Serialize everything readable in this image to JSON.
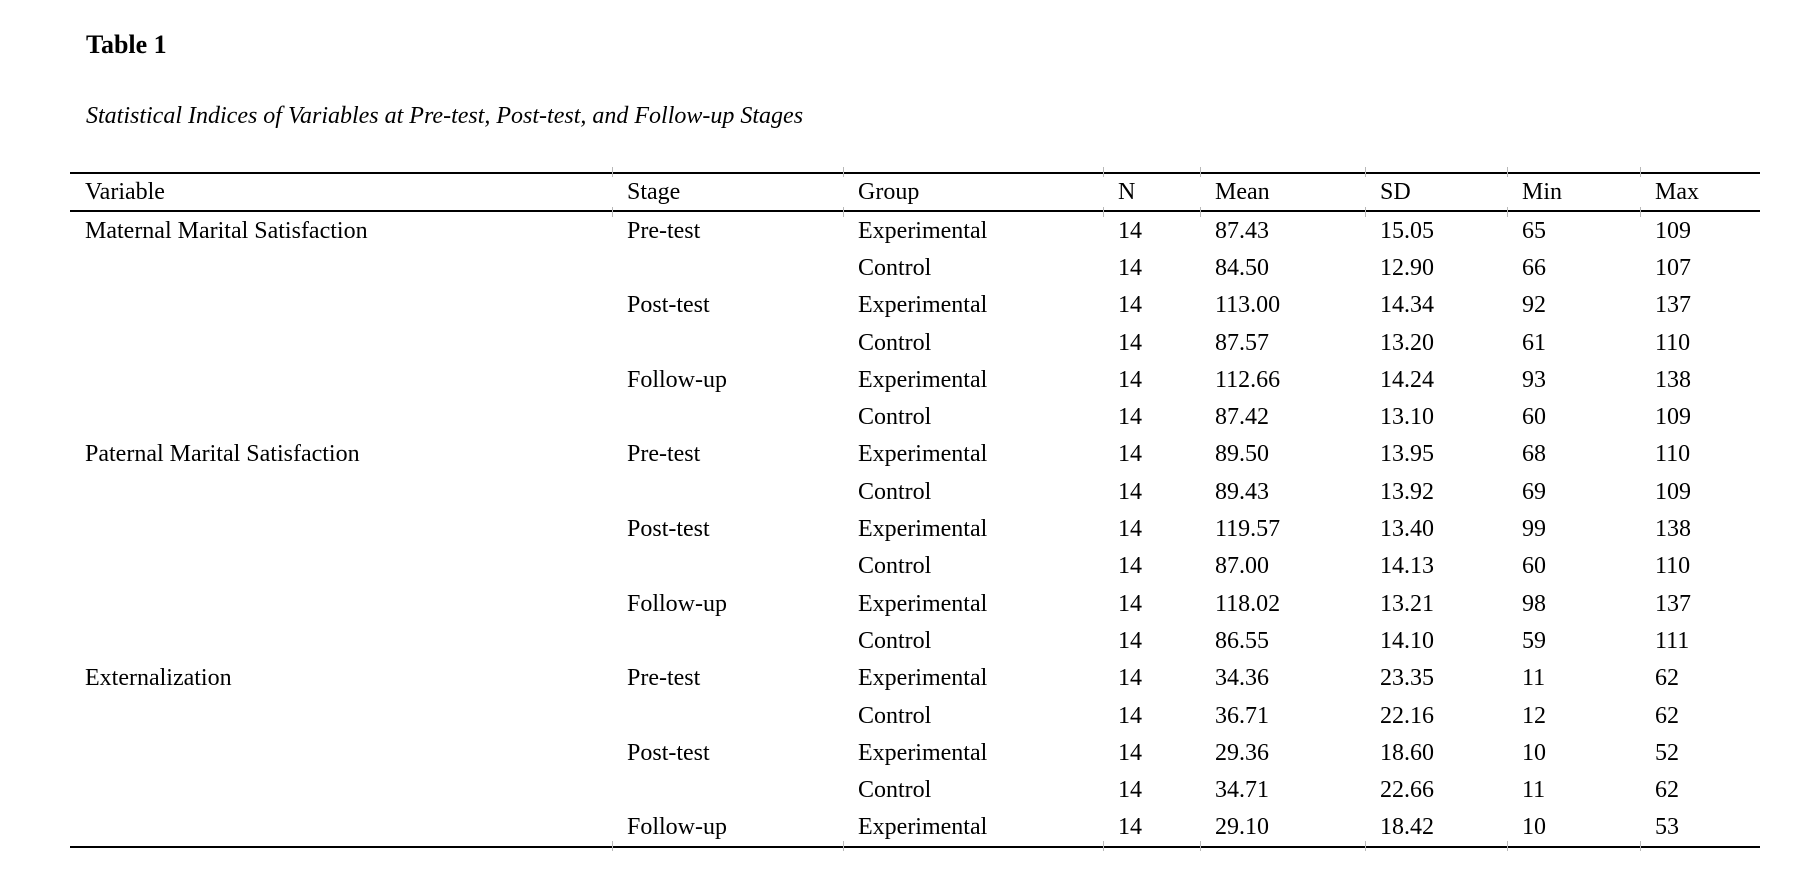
{
  "page": {
    "title": "Table 1",
    "subtitle": "Statistical Indices of Variables at Pre-test, Post-test, and Follow-up Stages"
  },
  "table": {
    "headers": [
      "Variable",
      "Stage",
      "Group",
      "N",
      "Mean",
      "SD",
      "Min",
      "Max"
    ],
    "rows": [
      [
        "Maternal Marital Satisfaction",
        "Pre-test",
        "Experimental",
        "14",
        "87.43",
        "15.05",
        "65",
        "109"
      ],
      [
        "",
        "",
        "Control",
        "14",
        "84.50",
        "12.90",
        "66",
        "107"
      ],
      [
        "",
        "Post-test",
        "Experimental",
        "14",
        "113.00",
        "14.34",
        "92",
        "137"
      ],
      [
        "",
        "",
        "Control",
        "14",
        "87.57",
        "13.20",
        "61",
        "110"
      ],
      [
        "",
        "Follow-up",
        "Experimental",
        "14",
        "112.66",
        "14.24",
        "93",
        "138"
      ],
      [
        "",
        "",
        "Control",
        "14",
        "87.42",
        "13.10",
        "60",
        "109"
      ],
      [
        "Paternal Marital Satisfaction",
        "Pre-test",
        "Experimental",
        "14",
        "89.50",
        "13.95",
        "68",
        "110"
      ],
      [
        "",
        "",
        "Control",
        "14",
        "89.43",
        "13.92",
        "69",
        "109"
      ],
      [
        "",
        "Post-test",
        "Experimental",
        "14",
        "119.57",
        "13.40",
        "99",
        "138"
      ],
      [
        "",
        "",
        "Control",
        "14",
        "87.00",
        "14.13",
        "60",
        "110"
      ],
      [
        "",
        "Follow-up",
        "Experimental",
        "14",
        "118.02",
        "13.21",
        "98",
        "137"
      ],
      [
        "",
        "",
        "Control",
        "14",
        "86.55",
        "14.10",
        "59",
        "111"
      ],
      [
        "Externalization",
        "Pre-test",
        "Experimental",
        "14",
        "34.36",
        "23.35",
        "11",
        "62"
      ],
      [
        "",
        "",
        "Control",
        "14",
        "36.71",
        "22.16",
        "12",
        "62"
      ],
      [
        "",
        "Post-test",
        "Experimental",
        "14",
        "29.36",
        "18.60",
        "10",
        "52"
      ],
      [
        "",
        "",
        "Control",
        "14",
        "34.71",
        "22.66",
        "11",
        "62"
      ],
      [
        "",
        "Follow-up",
        "Experimental",
        "14",
        "29.10",
        "18.42",
        "10",
        "53"
      ]
    ]
  },
  "colors": {
    "background": "#ffffff",
    "text": "#000000",
    "rule": "#000000",
    "tick": "#b9b9b9"
  }
}
